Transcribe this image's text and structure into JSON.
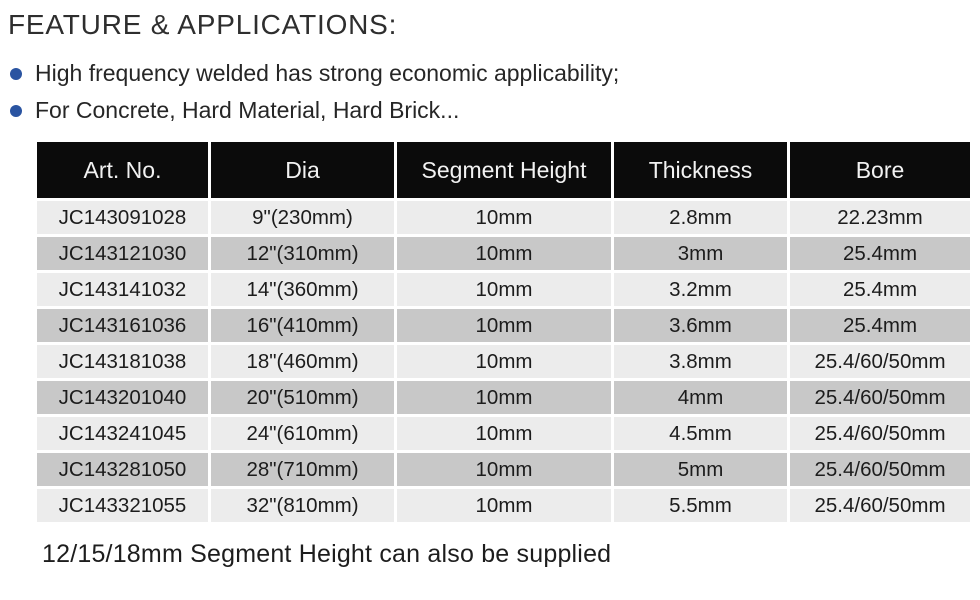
{
  "title": "FEATURE & APPLICATIONS:",
  "bullets": [
    "High frequency welded has strong economic applicability;",
    "For Concrete, Hard Material, Hard Brick..."
  ],
  "table": {
    "headers": [
      "Art. No.",
      "Dia",
      "Segment Height",
      "Thickness",
      "Bore"
    ],
    "rows": [
      [
        "JC143091028",
        "9\"(230mm)",
        "10mm",
        "2.8mm",
        "22.23mm"
      ],
      [
        "JC143121030",
        "12\"(310mm)",
        "10mm",
        "3mm",
        "25.4mm"
      ],
      [
        "JC143141032",
        "14\"(360mm)",
        "10mm",
        "3.2mm",
        "25.4mm"
      ],
      [
        "JC143161036",
        "16\"(410mm)",
        "10mm",
        "3.6mm",
        "25.4mm"
      ],
      [
        "JC143181038",
        "18\"(460mm)",
        "10mm",
        "3.8mm",
        "25.4/60/50mm"
      ],
      [
        "JC143201040",
        "20\"(510mm)",
        "10mm",
        "4mm",
        "25.4/60/50mm"
      ],
      [
        "JC143241045",
        "24\"(610mm)",
        "10mm",
        "4.5mm",
        "25.4/60/50mm"
      ],
      [
        "JC143281050",
        "28\"(710mm)",
        "10mm",
        "5mm",
        "25.4/60/50mm"
      ],
      [
        "JC143321055",
        "32\"(810mm)",
        "10mm",
        "5.5mm",
        "25.4/60/50mm"
      ]
    ]
  },
  "footer_note": "12/15/18mm Segment Height can also be supplied",
  "colors": {
    "bullet_dot": "#2a54a1",
    "header_bg": "#0b0b0b",
    "header_text": "#f2f2f2",
    "row_light_bg": "#ececec",
    "row_dark_bg": "#c8c8c8",
    "body_text": "#1c1c1c"
  }
}
